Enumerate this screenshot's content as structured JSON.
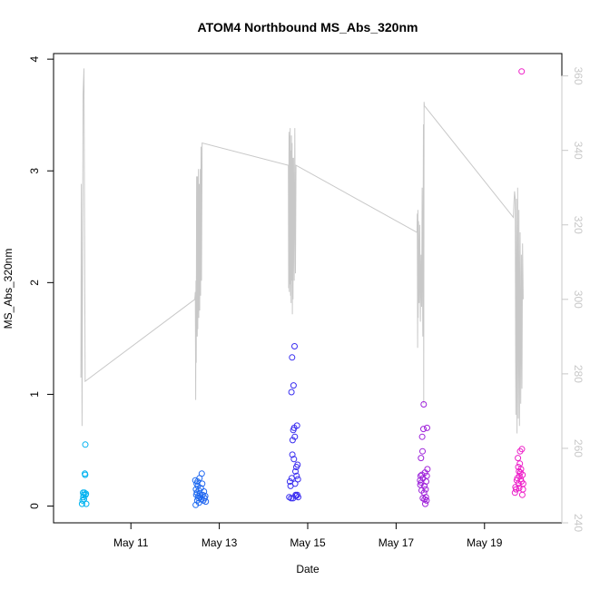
{
  "chart_data": {
    "type": "scatter",
    "title": "ATOM4 Northbound MS_Abs_320nm",
    "xlabel": "Date",
    "ylabel": "MS_Abs_320nm",
    "x_axis": {
      "type": "date",
      "range": [
        "2018-05-09T06:00",
        "2018-05-20T18:00"
      ],
      "ticks": [
        {
          "x": "2018-05-11",
          "label": "May 11"
        },
        {
          "x": "2018-05-13",
          "label": "May 13"
        },
        {
          "x": "2018-05-15",
          "label": "May 15"
        },
        {
          "x": "2018-05-17",
          "label": "May 17"
        },
        {
          "x": "2018-05-19",
          "label": "May 19"
        }
      ]
    },
    "y_axis": {
      "range": [
        -0.15,
        4.05
      ],
      "ticks": [
        "0",
        "1",
        "2",
        "3",
        "4"
      ]
    },
    "y2_axis": {
      "range": [
        240,
        366
      ],
      "ticks": [
        "240",
        "260",
        "280",
        "300",
        "320",
        "340",
        "360"
      ],
      "color": "#c8c8c8"
    },
    "grid": false,
    "legend": "none",
    "colors": {
      "line": "#c8c8c8",
      "points_start": "#00b4f0",
      "points_mid": "#3c28f0",
      "points_end": "#f020c8"
    },
    "series": [
      {
        "type": "scatter",
        "axis": "left",
        "points": [
          {
            "x": "2018-05-09T21:30",
            "y": 0.02
          },
          {
            "x": "2018-05-09T21:45",
            "y": 0.05
          },
          {
            "x": "2018-05-09T22:00",
            "y": 0.12
          },
          {
            "x": "2018-05-09T22:10",
            "y": 0.08
          },
          {
            "x": "2018-05-09T22:20",
            "y": 0.1
          },
          {
            "x": "2018-05-09T22:30",
            "y": 0.06
          },
          {
            "x": "2018-05-09T22:45",
            "y": 0.12
          },
          {
            "x": "2018-05-09T23:00",
            "y": 0.29
          },
          {
            "x": "2018-05-09T23:10",
            "y": 0.28
          },
          {
            "x": "2018-05-09T23:15",
            "y": 0.55
          },
          {
            "x": "2018-05-09T23:20",
            "y": 0.1
          },
          {
            "x": "2018-05-09T23:35",
            "y": 0.11
          },
          {
            "x": "2018-05-09T23:45",
            "y": 0.02
          },
          {
            "x": "2018-05-12T11:00",
            "y": 0.23
          },
          {
            "x": "2018-05-12T11:10",
            "y": 0.01
          },
          {
            "x": "2018-05-12T11:20",
            "y": 0.15
          },
          {
            "x": "2018-05-12T11:30",
            "y": 0.1
          },
          {
            "x": "2018-05-12T11:40",
            "y": 0.2
          },
          {
            "x": "2018-05-12T11:50",
            "y": 0.12
          },
          {
            "x": "2018-05-12T12:00",
            "y": 0.05
          },
          {
            "x": "2018-05-12T12:10",
            "y": 0.22
          },
          {
            "x": "2018-05-12T12:20",
            "y": 0.18
          },
          {
            "x": "2018-05-12T12:30",
            "y": 0.09
          },
          {
            "x": "2018-05-12T12:40",
            "y": 0.07
          },
          {
            "x": "2018-05-12T12:50",
            "y": 0.14
          },
          {
            "x": "2018-05-12T13:00",
            "y": 0.03
          },
          {
            "x": "2018-05-12T13:15",
            "y": 0.25
          },
          {
            "x": "2018-05-12T13:30",
            "y": 0.11
          },
          {
            "x": "2018-05-12T13:45",
            "y": 0.08
          },
          {
            "x": "2018-05-12T14:00",
            "y": 0.16
          },
          {
            "x": "2018-05-12T14:15",
            "y": 0.06
          },
          {
            "x": "2018-05-12T14:30",
            "y": 0.29
          },
          {
            "x": "2018-05-12T14:45",
            "y": 0.2
          },
          {
            "x": "2018-05-12T15:00",
            "y": 0.1
          },
          {
            "x": "2018-05-12T15:20",
            "y": 0.05
          },
          {
            "x": "2018-05-12T15:40",
            "y": 0.13
          },
          {
            "x": "2018-05-12T16:00",
            "y": 0.07
          },
          {
            "x": "2018-05-12T16:20",
            "y": 0.09
          },
          {
            "x": "2018-05-12T16:40",
            "y": 0.04
          },
          {
            "x": "2018-05-14T14:00",
            "y": 0.08
          },
          {
            "x": "2018-05-14T14:20",
            "y": 0.22
          },
          {
            "x": "2018-05-14T14:40",
            "y": 0.18
          },
          {
            "x": "2018-05-14T15:00",
            "y": 0.07
          },
          {
            "x": "2018-05-14T15:10",
            "y": 1.02
          },
          {
            "x": "2018-05-14T15:20",
            "y": 0.25
          },
          {
            "x": "2018-05-14T15:30",
            "y": 1.33
          },
          {
            "x": "2018-05-14T15:40",
            "y": 0.46
          },
          {
            "x": "2018-05-14T15:50",
            "y": 0.59
          },
          {
            "x": "2018-05-14T16:00",
            "y": 0.07
          },
          {
            "x": "2018-05-14T16:10",
            "y": 0.68
          },
          {
            "x": "2018-05-14T16:20",
            "y": 1.08
          },
          {
            "x": "2018-05-14T16:30",
            "y": 0.42
          },
          {
            "x": "2018-05-14T16:40",
            "y": 0.7
          },
          {
            "x": "2018-05-14T16:50",
            "y": 1.43
          },
          {
            "x": "2018-05-14T17:00",
            "y": 0.62
          },
          {
            "x": "2018-05-14T17:10",
            "y": 0.2
          },
          {
            "x": "2018-05-14T17:20",
            "y": 0.31
          },
          {
            "x": "2018-05-14T17:30",
            "y": 0.1
          },
          {
            "x": "2018-05-14T17:40",
            "y": 0.09
          },
          {
            "x": "2018-05-14T17:50",
            "y": 0.35
          },
          {
            "x": "2018-05-14T18:00",
            "y": 0.27
          },
          {
            "x": "2018-05-14T18:10",
            "y": 0.72
          },
          {
            "x": "2018-05-14T18:20",
            "y": 0.1
          },
          {
            "x": "2018-05-14T18:30",
            "y": 0.37
          },
          {
            "x": "2018-05-14T18:40",
            "y": 0.24
          },
          {
            "x": "2018-05-14T18:50",
            "y": 0.08
          },
          {
            "x": "2018-05-17T13:00",
            "y": 0.23
          },
          {
            "x": "2018-05-17T13:10",
            "y": 0.19
          },
          {
            "x": "2018-05-17T13:20",
            "y": 0.27
          },
          {
            "x": "2018-05-17T13:30",
            "y": 0.43
          },
          {
            "x": "2018-05-17T13:40",
            "y": 0.21
          },
          {
            "x": "2018-05-17T13:50",
            "y": 0.14
          },
          {
            "x": "2018-05-17T14:00",
            "y": 0.28
          },
          {
            "x": "2018-05-17T14:10",
            "y": 0.62
          },
          {
            "x": "2018-05-17T14:20",
            "y": 0.49
          },
          {
            "x": "2018-05-17T14:30",
            "y": 0.07
          },
          {
            "x": "2018-05-17T14:40",
            "y": 0.25
          },
          {
            "x": "2018-05-17T14:50",
            "y": 0.69
          },
          {
            "x": "2018-05-17T15:00",
            "y": 0.91
          },
          {
            "x": "2018-05-17T15:10",
            "y": 0.12
          },
          {
            "x": "2018-05-17T15:20",
            "y": 0.18
          },
          {
            "x": "2018-05-17T15:30",
            "y": 0.06
          },
          {
            "x": "2018-05-17T15:40",
            "y": 0.3
          },
          {
            "x": "2018-05-17T15:50",
            "y": 0.02
          },
          {
            "x": "2018-05-17T16:00",
            "y": 0.15
          },
          {
            "x": "2018-05-17T16:10",
            "y": 0.08
          },
          {
            "x": "2018-05-17T16:20",
            "y": 0.22
          },
          {
            "x": "2018-05-17T16:30",
            "y": 0.05
          },
          {
            "x": "2018-05-17T16:40",
            "y": 0.27
          },
          {
            "x": "2018-05-17T16:50",
            "y": 0.7
          },
          {
            "x": "2018-05-17T17:00",
            "y": 0.33
          },
          {
            "x": "2018-05-19T16:30",
            "y": 0.12
          },
          {
            "x": "2018-05-19T16:50",
            "y": 0.17
          },
          {
            "x": "2018-05-19T17:10",
            "y": 0.15
          },
          {
            "x": "2018-05-19T17:30",
            "y": 0.23
          },
          {
            "x": "2018-05-19T17:50",
            "y": 0.25
          },
          {
            "x": "2018-05-19T18:10",
            "y": 0.43
          },
          {
            "x": "2018-05-19T18:20",
            "y": 0.35
          },
          {
            "x": "2018-05-19T18:30",
            "y": 0.2
          },
          {
            "x": "2018-05-19T18:40",
            "y": 0.31
          },
          {
            "x": "2018-05-19T18:50",
            "y": 0.16
          },
          {
            "x": "2018-05-19T19:00",
            "y": 0.27
          },
          {
            "x": "2018-05-19T19:10",
            "y": 0.38
          },
          {
            "x": "2018-05-19T19:20",
            "y": 0.49
          },
          {
            "x": "2018-05-19T19:30",
            "y": 0.3
          },
          {
            "x": "2018-05-19T19:40",
            "y": 0.24
          },
          {
            "x": "2018-05-19T19:50",
            "y": 0.33
          },
          {
            "x": "2018-05-19T20:00",
            "y": 0.22
          },
          {
            "x": "2018-05-19T20:10",
            "y": 3.89
          },
          {
            "x": "2018-05-19T20:20",
            "y": 0.51
          },
          {
            "x": "2018-05-19T20:30",
            "y": 0.1
          },
          {
            "x": "2018-05-19T20:40",
            "y": 0.28
          },
          {
            "x": "2018-05-19T20:50",
            "y": 0.15
          },
          {
            "x": "2018-05-19T21:00",
            "y": 0.2
          }
        ]
      },
      {
        "type": "line",
        "axis": "right",
        "points": [
          {
            "x": "2018-05-09T20:50",
            "y": 279
          },
          {
            "x": "2018-05-09T21:00",
            "y": 310
          },
          {
            "x": "2018-05-09T21:05",
            "y": 331
          },
          {
            "x": "2018-05-09T21:20",
            "y": 291
          },
          {
            "x": "2018-05-09T21:30",
            "y": 266
          },
          {
            "x": "2018-05-09T21:45",
            "y": 312
          },
          {
            "x": "2018-05-09T22:00",
            "y": 355
          },
          {
            "x": "2018-05-09T22:30",
            "y": 362
          },
          {
            "x": "2018-05-09T23:10",
            "y": 278
          },
          {
            "x": "2018-05-12T10:40",
            "y": 300
          },
          {
            "x": "2018-05-12T11:00",
            "y": 302
          },
          {
            "x": "2018-05-12T11:10",
            "y": 273
          },
          {
            "x": "2018-05-12T11:20",
            "y": 305
          },
          {
            "x": "2018-05-12T11:30",
            "y": 283
          },
          {
            "x": "2018-05-12T11:40",
            "y": 333
          },
          {
            "x": "2018-05-12T12:00",
            "y": 290
          },
          {
            "x": "2018-05-12T12:10",
            "y": 333
          },
          {
            "x": "2018-05-12T12:20",
            "y": 292
          },
          {
            "x": "2018-05-12T12:40",
            "y": 335
          },
          {
            "x": "2018-05-12T12:50",
            "y": 295
          },
          {
            "x": "2018-05-12T13:05",
            "y": 331
          },
          {
            "x": "2018-05-12T13:20",
            "y": 297
          },
          {
            "x": "2018-05-12T13:40",
            "y": 335
          },
          {
            "x": "2018-05-12T13:50",
            "y": 301
          },
          {
            "x": "2018-05-12T14:05",
            "y": 341
          },
          {
            "x": "2018-05-12T14:20",
            "y": 305
          },
          {
            "x": "2018-05-12T14:40",
            "y": 342
          },
          {
            "x": "2018-05-14T13:30",
            "y": 336
          },
          {
            "x": "2018-05-14T13:40",
            "y": 303
          },
          {
            "x": "2018-05-14T13:50",
            "y": 345
          },
          {
            "x": "2018-05-14T14:00",
            "y": 302
          },
          {
            "x": "2018-05-14T14:10",
            "y": 344
          },
          {
            "x": "2018-05-14T14:20",
            "y": 304
          },
          {
            "x": "2018-05-14T14:30",
            "y": 346
          },
          {
            "x": "2018-05-14T14:40",
            "y": 301
          },
          {
            "x": "2018-05-14T14:50",
            "y": 340
          },
          {
            "x": "2018-05-14T15:00",
            "y": 299
          },
          {
            "x": "2018-05-14T15:10",
            "y": 344
          },
          {
            "x": "2018-05-14T15:20",
            "y": 305
          },
          {
            "x": "2018-05-14T15:30",
            "y": 342
          },
          {
            "x": "2018-05-14T15:40",
            "y": 296
          },
          {
            "x": "2018-05-14T15:50",
            "y": 338
          },
          {
            "x": "2018-05-14T16:00",
            "y": 300
          },
          {
            "x": "2018-05-14T16:20",
            "y": 338
          },
          {
            "x": "2018-05-14T16:40",
            "y": 305
          },
          {
            "x": "2018-05-14T17:00",
            "y": 346
          },
          {
            "x": "2018-05-14T17:20",
            "y": 307
          },
          {
            "x": "2018-05-14T17:40",
            "y": 336
          },
          {
            "x": "2018-05-17T11:20",
            "y": 318
          },
          {
            "x": "2018-05-17T11:30",
            "y": 323
          },
          {
            "x": "2018-05-17T11:40",
            "y": 287
          },
          {
            "x": "2018-05-17T11:50",
            "y": 324
          },
          {
            "x": "2018-05-17T12:00",
            "y": 295
          },
          {
            "x": "2018-05-17T12:10",
            "y": 321
          },
          {
            "x": "2018-05-17T12:30",
            "y": 299
          },
          {
            "x": "2018-05-17T12:50",
            "y": 320
          },
          {
            "x": "2018-05-17T13:10",
            "y": 294
          },
          {
            "x": "2018-05-17T13:30",
            "y": 312
          },
          {
            "x": "2018-05-17T13:50",
            "y": 298
          },
          {
            "x": "2018-05-17T14:10",
            "y": 330
          },
          {
            "x": "2018-05-17T14:30",
            "y": 290
          },
          {
            "x": "2018-05-17T14:50",
            "y": 347
          },
          {
            "x": "2018-05-17T15:00",
            "y": 272
          },
          {
            "x": "2018-05-17T15:10",
            "y": 353
          },
          {
            "x": "2018-05-17T15:20",
            "y": 352
          },
          {
            "x": "2018-05-19T15:40",
            "y": 322
          },
          {
            "x": "2018-05-19T16:00",
            "y": 326
          },
          {
            "x": "2018-05-19T16:20",
            "y": 329
          },
          {
            "x": "2018-05-19T16:40",
            "y": 327
          },
          {
            "x": "2018-05-19T17:00",
            "y": 269
          },
          {
            "x": "2018-05-19T17:20",
            "y": 327
          },
          {
            "x": "2018-05-19T17:40",
            "y": 264
          },
          {
            "x": "2018-05-19T18:00",
            "y": 330
          },
          {
            "x": "2018-05-19T18:20",
            "y": 268
          },
          {
            "x": "2018-05-19T18:40",
            "y": 324
          },
          {
            "x": "2018-05-19T19:00",
            "y": 266
          },
          {
            "x": "2018-05-19T19:20",
            "y": 318
          },
          {
            "x": "2018-05-19T19:40",
            "y": 272
          },
          {
            "x": "2018-05-19T20:00",
            "y": 312
          },
          {
            "x": "2018-05-19T20:20",
            "y": 276
          },
          {
            "x": "2018-05-19T20:40",
            "y": 315
          },
          {
            "x": "2018-05-19T21:00",
            "y": 300
          }
        ]
      }
    ]
  }
}
